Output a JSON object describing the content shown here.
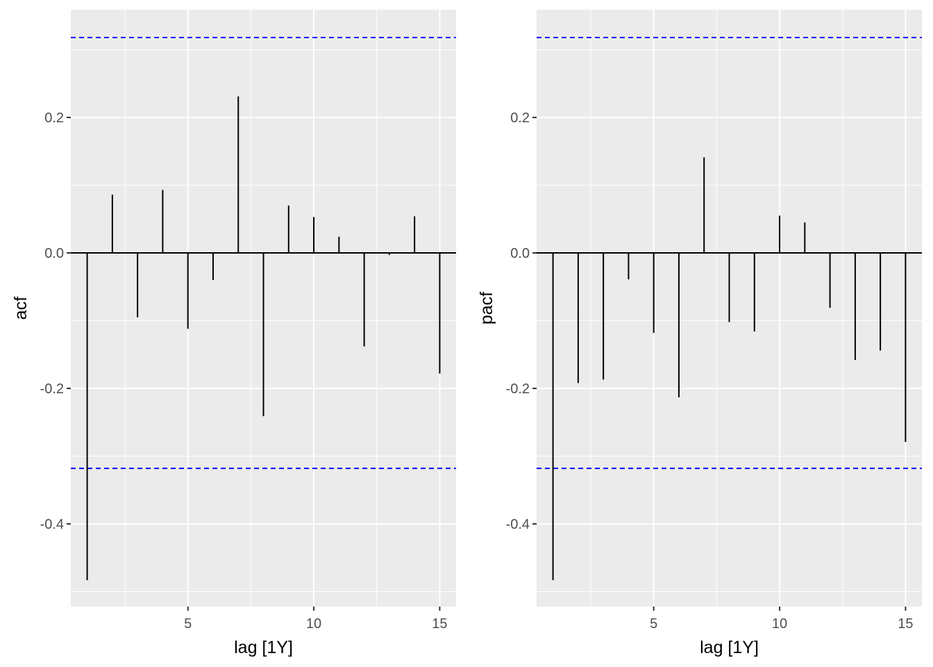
{
  "chart_data": [
    {
      "type": "bar",
      "style": "lollipop-acf",
      "xlabel": "lag [1Y]",
      "ylabel": "acf",
      "x": [
        1,
        2,
        3,
        4,
        5,
        6,
        7,
        8,
        9,
        10,
        11,
        12,
        13,
        14,
        15
      ],
      "values": [
        -0.483,
        0.086,
        -0.095,
        0.093,
        -0.112,
        -0.04,
        0.231,
        -0.241,
        0.07,
        0.053,
        0.024,
        -0.138,
        -0.003,
        0.054,
        -0.178
      ],
      "confidence_bound": 0.318,
      "xlim": [
        0.35,
        15.65
      ],
      "ylim": [
        -0.522,
        0.359
      ],
      "x_ticks": [
        5,
        10,
        15
      ],
      "x_tick_labels": [
        "5",
        "10",
        "15"
      ],
      "y_ticks": [
        -0.4,
        -0.2,
        0.0,
        0.2
      ],
      "y_tick_labels": [
        "-0.4",
        "-0.2",
        "0.0",
        "0.2"
      ],
      "grid": true,
      "colors": {
        "panel": "#ebebeb",
        "grid": "#ffffff",
        "bar": "#000000",
        "bound": "#0000ff"
      }
    },
    {
      "type": "bar",
      "style": "lollipop-pacf",
      "xlabel": "lag [1Y]",
      "ylabel": "pacf",
      "x": [
        1,
        2,
        3,
        4,
        5,
        6,
        7,
        8,
        9,
        10,
        11,
        12,
        13,
        14,
        15
      ],
      "values": [
        -0.483,
        -0.192,
        -0.187,
        -0.039,
        -0.118,
        -0.213,
        0.141,
        -0.102,
        -0.116,
        0.055,
        0.045,
        -0.081,
        -0.158,
        -0.144,
        -0.279
      ],
      "confidence_bound": 0.318,
      "xlim": [
        0.35,
        15.65
      ],
      "ylim": [
        -0.522,
        0.359
      ],
      "x_ticks": [
        5,
        10,
        15
      ],
      "x_tick_labels": [
        "5",
        "10",
        "15"
      ],
      "y_ticks": [
        -0.4,
        -0.2,
        0.0,
        0.2
      ],
      "y_tick_labels": [
        "-0.4",
        "-0.2",
        "0.0",
        "0.2"
      ],
      "grid": true,
      "colors": {
        "panel": "#ebebeb",
        "grid": "#ffffff",
        "bar": "#000000",
        "bound": "#0000ff"
      }
    }
  ]
}
